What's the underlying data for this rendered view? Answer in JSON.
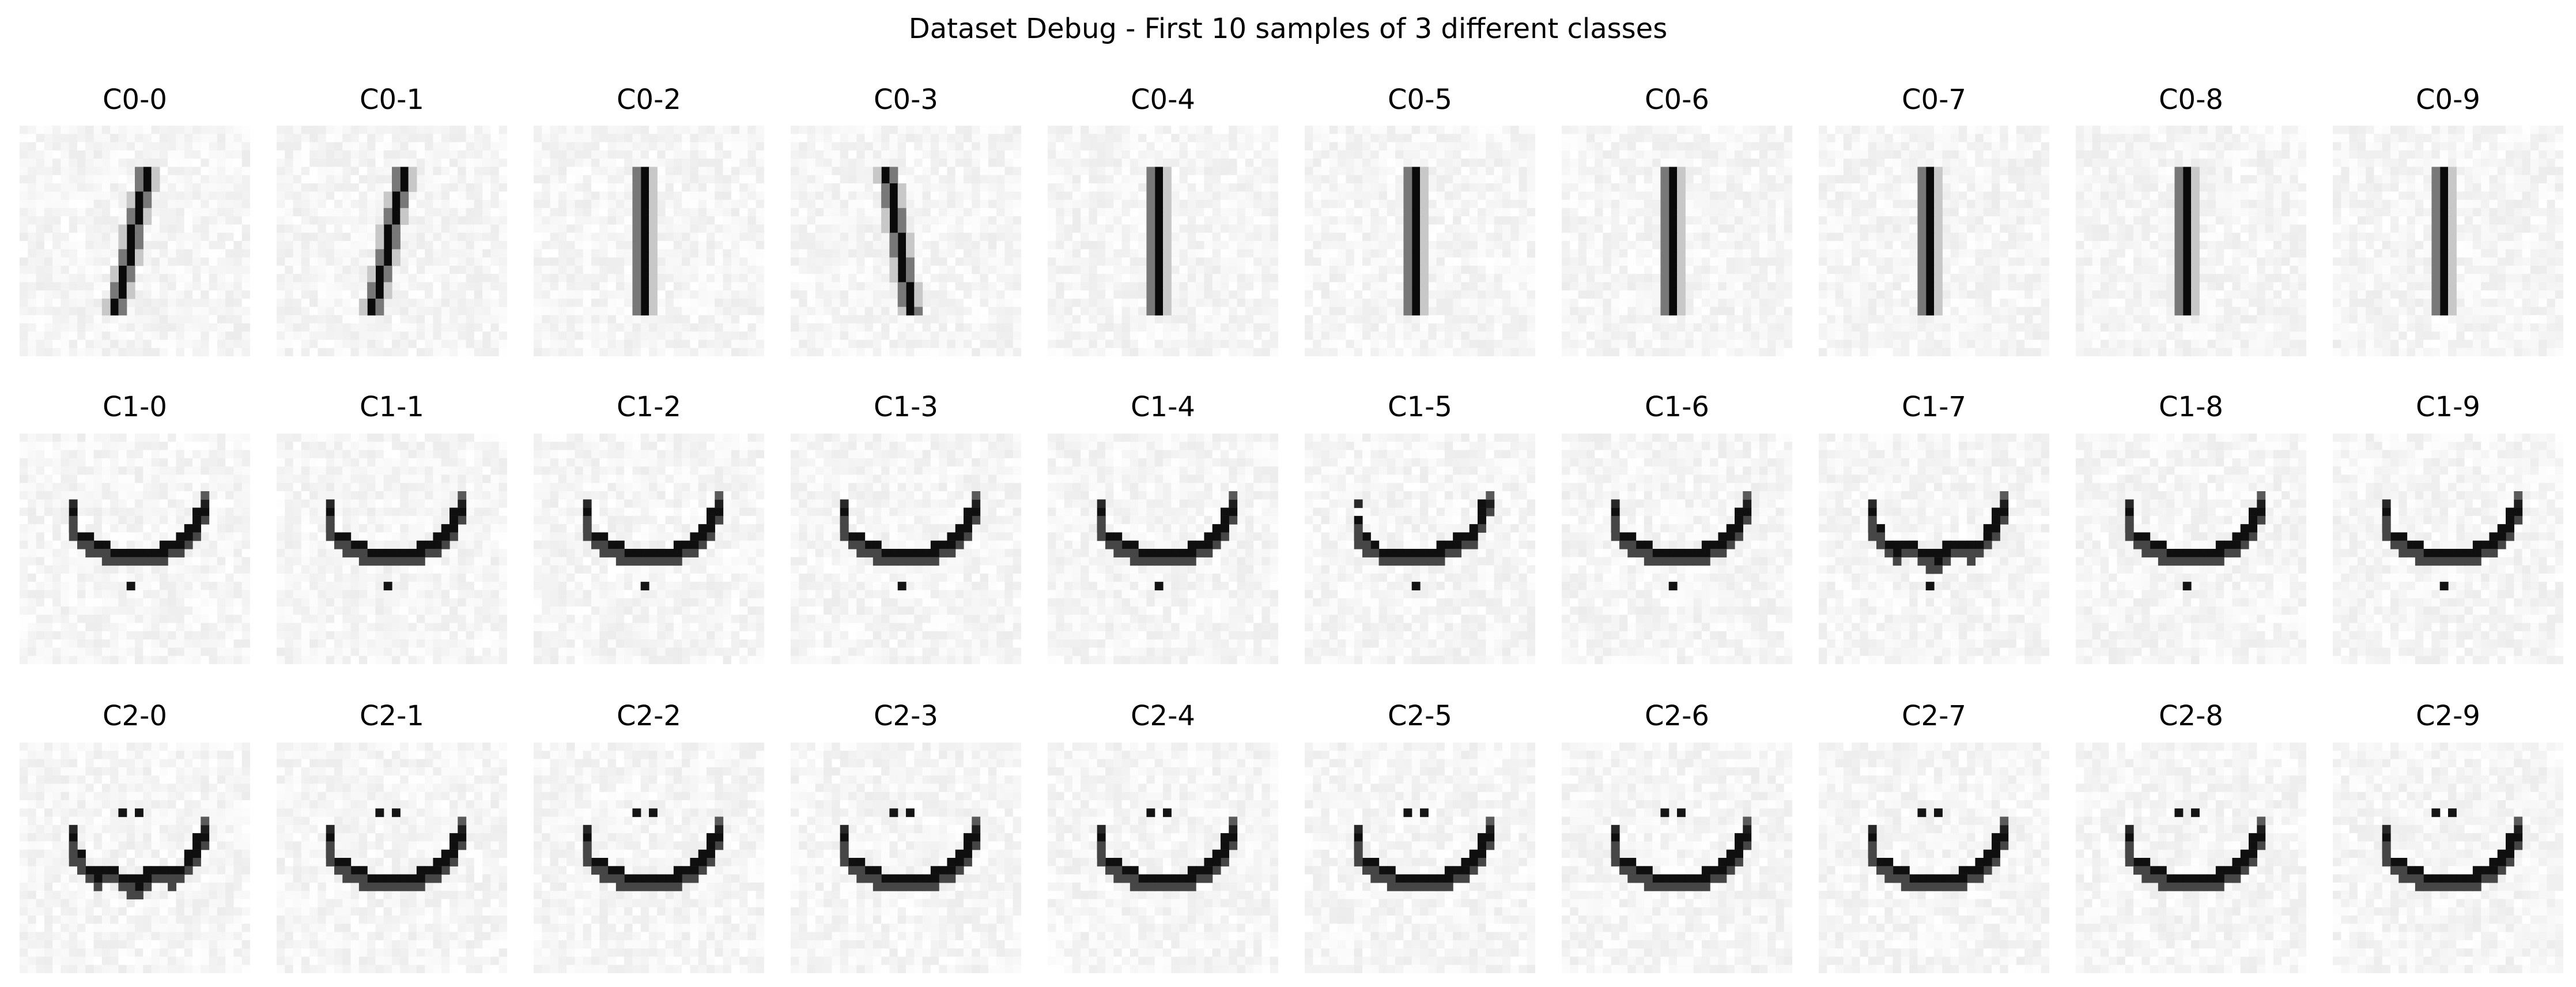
{
  "title": "Dataset Debug - First 10 samples of 3 different classes",
  "colors": {
    "background": "#ffffff",
    "ink": "#000000",
    "noise_base": "#f4f4f4"
  },
  "rows": [
    {
      "class_id": 0,
      "glyph": "vertical-bar",
      "samples": [
        {
          "label": "C0-0",
          "variant": "slant-right"
        },
        {
          "label": "C0-1",
          "variant": "slant-right"
        },
        {
          "label": "C0-2",
          "variant": "straight"
        },
        {
          "label": "C0-3",
          "variant": "slant-left"
        },
        {
          "label": "C0-4",
          "variant": "straight"
        },
        {
          "label": "C0-5",
          "variant": "straight"
        },
        {
          "label": "C0-6",
          "variant": "straight"
        },
        {
          "label": "C0-7",
          "variant": "straight"
        },
        {
          "label": "C0-8",
          "variant": "straight"
        },
        {
          "label": "C0-9",
          "variant": "straight"
        }
      ]
    },
    {
      "class_id": 1,
      "glyph": "bowl-dot-below",
      "samples": [
        {
          "label": "C1-0",
          "variant": "normal"
        },
        {
          "label": "C1-1",
          "variant": "normal"
        },
        {
          "label": "C1-2",
          "variant": "normal"
        },
        {
          "label": "C1-3",
          "variant": "normal"
        },
        {
          "label": "C1-4",
          "variant": "normal"
        },
        {
          "label": "C1-5",
          "variant": "tilted"
        },
        {
          "label": "C1-6",
          "variant": "normal"
        },
        {
          "label": "C1-7",
          "variant": "jagged"
        },
        {
          "label": "C1-8",
          "variant": "normal"
        },
        {
          "label": "C1-9",
          "variant": "normal"
        }
      ]
    },
    {
      "class_id": 2,
      "glyph": "bowl-two-dots-above",
      "samples": [
        {
          "label": "C2-0",
          "variant": "jagged"
        },
        {
          "label": "C2-1",
          "variant": "normal"
        },
        {
          "label": "C2-2",
          "variant": "normal"
        },
        {
          "label": "C2-3",
          "variant": "normal"
        },
        {
          "label": "C2-4",
          "variant": "normal"
        },
        {
          "label": "C2-5",
          "variant": "normal"
        },
        {
          "label": "C2-6",
          "variant": "normal"
        },
        {
          "label": "C2-7",
          "variant": "normal"
        },
        {
          "label": "C2-8",
          "variant": "normal"
        },
        {
          "label": "C2-9",
          "variant": "normal"
        }
      ]
    }
  ]
}
